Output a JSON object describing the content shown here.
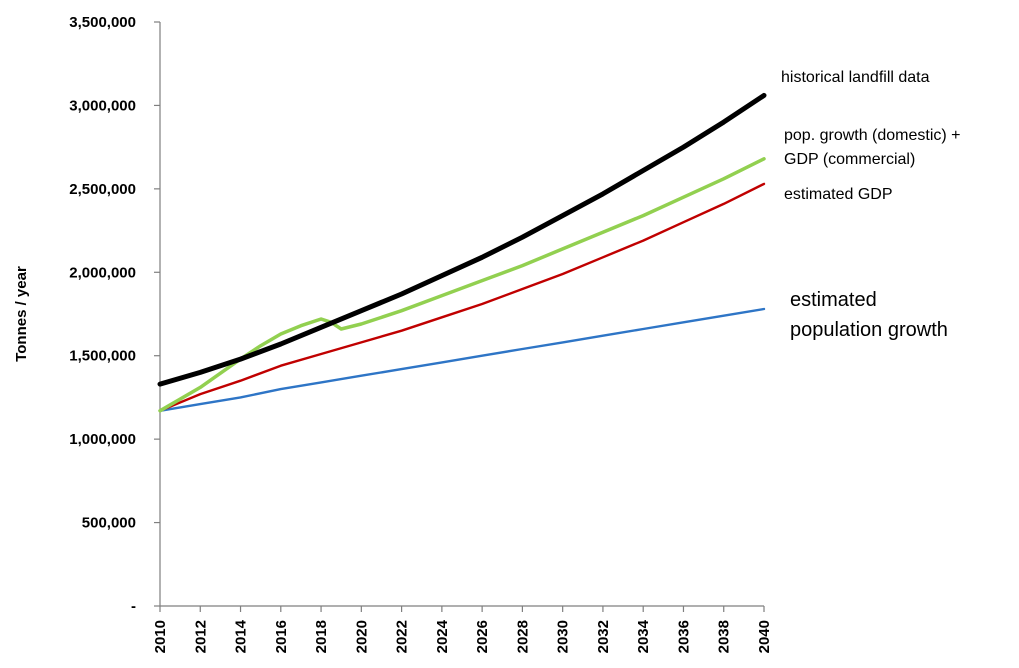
{
  "chart_data": {
    "type": "line",
    "title": "",
    "xlabel": "",
    "ylabel": "Tonnes / year",
    "xlim": [
      2010,
      2040
    ],
    "ylim": [
      0,
      3500000
    ],
    "yticks": [
      0,
      500000,
      1000000,
      1500000,
      2000000,
      2500000,
      3000000,
      3500000
    ],
    "ytick_labels": [
      "-",
      "500,000",
      "1,000,000",
      "1,500,000",
      "2,000,000",
      "2,500,000",
      "3,000,000",
      "3,500,000"
    ],
    "xticks": [
      2010,
      2012,
      2014,
      2016,
      2018,
      2020,
      2022,
      2024,
      2026,
      2028,
      2030,
      2032,
      2034,
      2036,
      2038,
      2040
    ],
    "xtick_labels": [
      "2010",
      "2012",
      "2014",
      "2016",
      "2018",
      "2020",
      "2022",
      "2024",
      "2026",
      "2028",
      "2030",
      "2032",
      "2034",
      "2036",
      "2038",
      "2040"
    ],
    "grid": false,
    "legend": "direct labels at right",
    "series": [
      {
        "name": "historical landfill data",
        "label_lines": [
          "historical landfill data"
        ],
        "color": "#000000",
        "x": [
          2010,
          2012,
          2014,
          2016,
          2018,
          2020,
          2022,
          2024,
          2026,
          2028,
          2030,
          2032,
          2034,
          2036,
          2038,
          2040
        ],
        "values": [
          1330000,
          1400000,
          1480000,
          1570000,
          1670000,
          1770000,
          1870000,
          1980000,
          2090000,
          2210000,
          2340000,
          2470000,
          2610000,
          2750000,
          2900000,
          3060000
        ]
      },
      {
        "name": "pop. growth (domestic) + GDP (commercial)",
        "label_lines": [
          "pop. growth (domestic) +",
          "GDP (commercial)"
        ],
        "color": "#92d050",
        "x": [
          2010,
          2012,
          2014,
          2015,
          2016,
          2017,
          2018,
          2018.5,
          2019,
          2020,
          2022,
          2024,
          2026,
          2028,
          2030,
          2032,
          2034,
          2036,
          2038,
          2040
        ],
        "values": [
          1170000,
          1310000,
          1480000,
          1560000,
          1630000,
          1680000,
          1720000,
          1700000,
          1660000,
          1690000,
          1770000,
          1860000,
          1950000,
          2040000,
          2140000,
          2240000,
          2340000,
          2450000,
          2560000,
          2680000
        ]
      },
      {
        "name": "estimated GDP",
        "label_lines": [
          "estimated GDP"
        ],
        "color": "#c00000",
        "x": [
          2010,
          2012,
          2014,
          2016,
          2018,
          2020,
          2022,
          2024,
          2026,
          2028,
          2030,
          2032,
          2034,
          2036,
          2038,
          2040
        ],
        "values": [
          1170000,
          1270000,
          1350000,
          1440000,
          1510000,
          1580000,
          1650000,
          1730000,
          1810000,
          1900000,
          1990000,
          2090000,
          2190000,
          2300000,
          2410000,
          2530000
        ]
      },
      {
        "name": "estimated population growth",
        "label_lines": [
          "estimated",
          "population growth"
        ],
        "color": "#2e75c6",
        "x": [
          2010,
          2012,
          2014,
          2016,
          2018,
          2020,
          2022,
          2024,
          2026,
          2028,
          2030,
          2032,
          2034,
          2036,
          2038,
          2040
        ],
        "values": [
          1170000,
          1210000,
          1250000,
          1300000,
          1340000,
          1380000,
          1420000,
          1460000,
          1500000,
          1540000,
          1580000,
          1620000,
          1660000,
          1700000,
          1740000,
          1780000
        ]
      }
    ]
  }
}
